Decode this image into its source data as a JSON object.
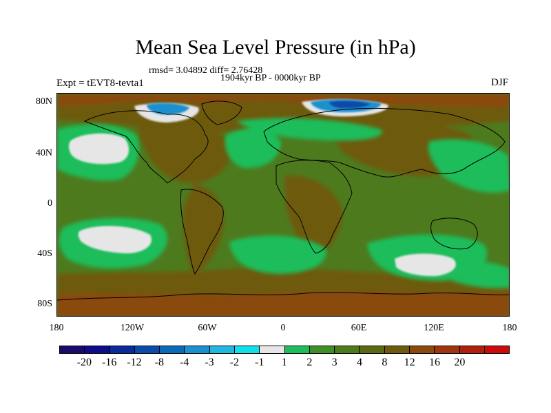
{
  "title": "Mean Sea Level Pressure (in hPa)",
  "stats": "rmsd= 3.04892 diff= 2.76428",
  "period": "1904kyr BP - 0000kyr BP",
  "experiment": "Expt = tEVT8-tevta1",
  "season": "DJF",
  "lat_labels": [
    "80N",
    "40N",
    "0",
    "40S",
    "80S"
  ],
  "lon_labels": [
    "180",
    "120W",
    "60W",
    "0",
    "60E",
    "120E",
    "180"
  ],
  "colorbar": {
    "colors": [
      "#1a0a6b",
      "#0d0d8c",
      "#0a2a9c",
      "#0a4aa8",
      "#0a6ab8",
      "#1a90cf",
      "#20b8e0",
      "#10e0e8",
      "#e6e6e6",
      "#1cbd5a",
      "#3f8f28",
      "#4e7a1e",
      "#5a6a12",
      "#6e5a0c",
      "#8a4a0e",
      "#9e3410",
      "#b01e0e",
      "#cc0a0a"
    ],
    "labels": [
      "-20",
      "-16",
      "-12",
      "-8",
      "-4",
      "-3",
      "-2",
      "-1",
      "1",
      "2",
      "3",
      "4",
      "8",
      "12",
      "16",
      "20"
    ]
  },
  "map_colors": {
    "ocean_base": "#4e7a1e",
    "level_1_2": "#1cbd5a",
    "level_3_4": "#3f8f28",
    "level_8_12": "#6e5a0c",
    "level_12_16": "#8a4a0e",
    "level_m1_1": "#e6e6e6",
    "level_negative": "#1a90cf",
    "level_strong_negative": "#0a4aa8",
    "coastline": "#000000"
  }
}
